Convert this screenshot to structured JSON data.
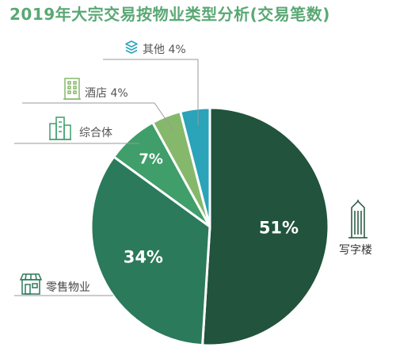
{
  "chart_data": {
    "type": "pie",
    "title": "2019年大宗交易按物业类型分析(交易笔数)",
    "slices": [
      {
        "label": "写字楼",
        "value": 51,
        "value_label": "51%",
        "color": "#21533d",
        "icon": "office-tower-icon"
      },
      {
        "label": "零售物业",
        "value": 34,
        "value_label": "34%",
        "color": "#2b7a5b",
        "icon": "storefront-icon"
      },
      {
        "label": "综合体",
        "value": 7,
        "value_label": "7%",
        "color": "#3f9e6a",
        "icon": "building-cluster-icon"
      },
      {
        "label": "酒店",
        "value": 4,
        "value_label": "4%",
        "color": "#86b86c",
        "icon": "hotel-building-icon"
      },
      {
        "label": "其他",
        "value": 4,
        "value_label": "4%",
        "color": "#2ba3b8",
        "icon": "layers-icon"
      }
    ],
    "callout_labels": {
      "other": "其他 4%",
      "hotel": "酒店 4%",
      "mixed": "综合体",
      "retail": "零售物业",
      "office": "写字楼"
    }
  }
}
